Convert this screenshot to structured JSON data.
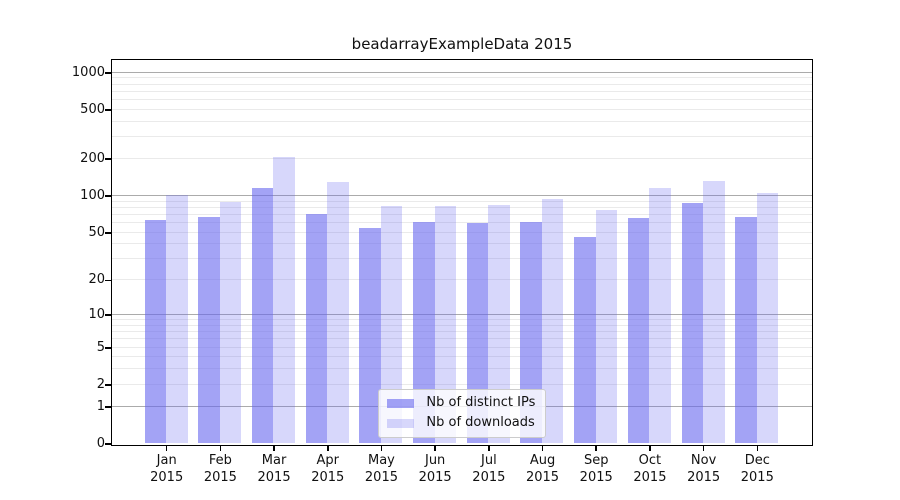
{
  "title": "beadarrayExampleData 2015",
  "chart_data": {
    "type": "bar",
    "categories": [
      "Jan 2015",
      "Feb 2015",
      "Mar 2015",
      "Apr 2015",
      "May 2015",
      "Jun 2015",
      "Jul 2015",
      "Aug 2015",
      "Sep 2015",
      "Oct 2015",
      "Nov 2015",
      "Dec 2015"
    ],
    "series": [
      {
        "name": "Nb of distinct IPs",
        "values": [
          63,
          67,
          116,
          70,
          54,
          61,
          60,
          61,
          46,
          66,
          87,
          67
        ],
        "color": "#6666EE99"
      },
      {
        "name": "Nb of downloads",
        "values": [
          100,
          88,
          207,
          128,
          82,
          82,
          83,
          93,
          76,
          114,
          130,
          104
        ],
        "color": "#6666EE42"
      }
    ],
    "yticks": [
      0,
      1,
      2,
      5,
      10,
      20,
      50,
      100,
      200,
      500,
      1000
    ],
    "yscale": "log10(1+x)",
    "ylim": [
      0,
      1250
    ],
    "grid": "horizontal; darker lines at 1, 10, 100, 1000; light minor lines at 2-9 mantissas",
    "legend_position": "inside-bottom-center"
  },
  "colors": {
    "bar_distinct_ips": "#6666EE99",
    "bar_downloads": "#6666EE42",
    "grid_major": "#ABABAB",
    "grid_minor": "#EAEAEA",
    "axis": "#000000",
    "text": "#111111",
    "legend_border": "#CCCCCC",
    "background": "#FFFFFF"
  }
}
